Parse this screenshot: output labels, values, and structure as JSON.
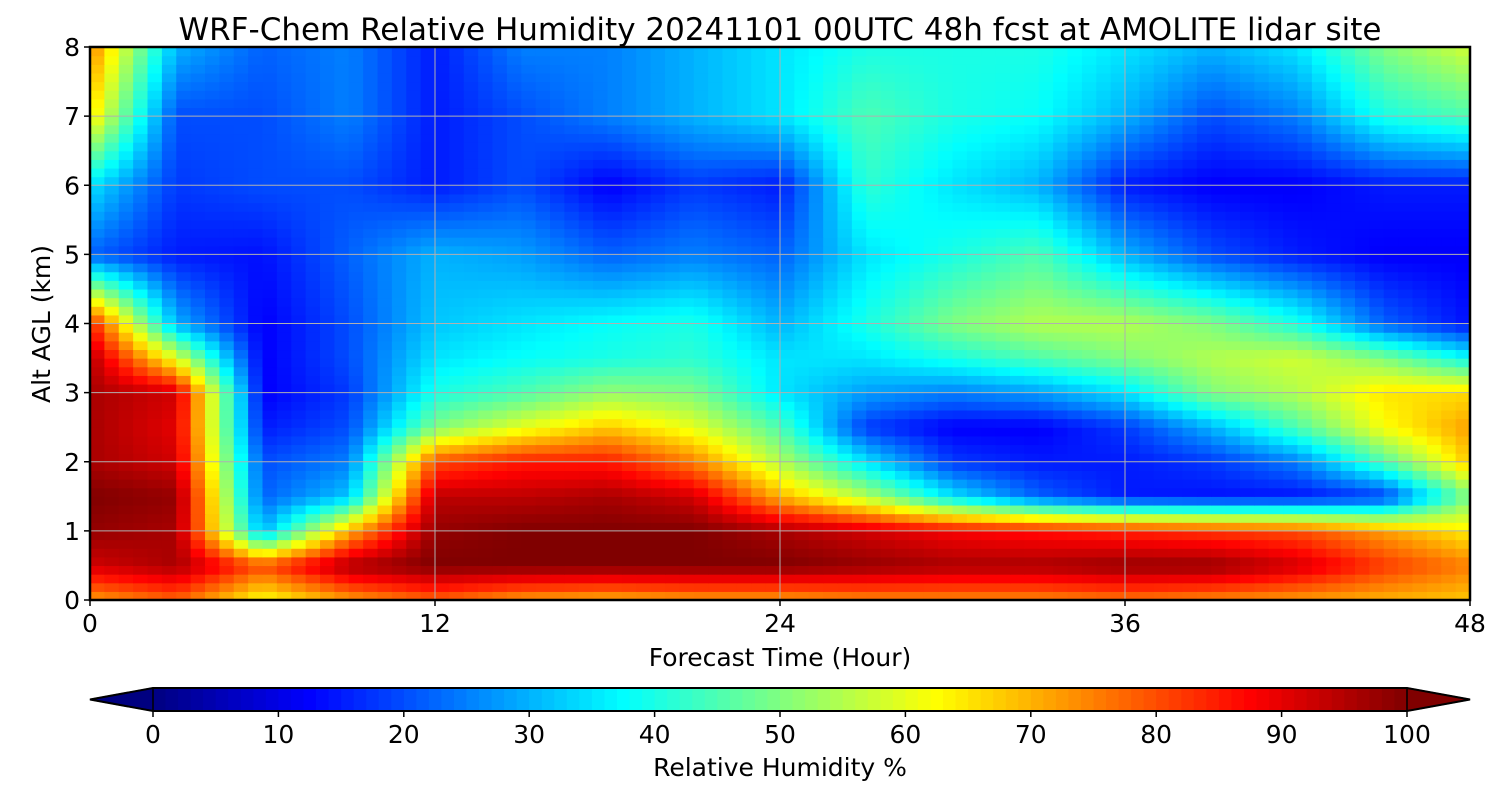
{
  "chart_data": {
    "type": "heatmap",
    "title": "WRF-Chem Relative Humidity 20241101 00UTC 48h fcst at AMOLITE lidar site",
    "xlabel": "Forecast Time (Hour)",
    "ylabel": "Alt AGL (km)",
    "xlim": [
      0,
      48
    ],
    "ylim": [
      0,
      8
    ],
    "x_ticks": [
      0,
      12,
      24,
      36,
      48
    ],
    "y_ticks": [
      0,
      1,
      2,
      3,
      4,
      5,
      6,
      7,
      8
    ],
    "grid": true,
    "colormap": "jet",
    "colorbar": {
      "label": "Relative Humidity %",
      "orientation": "horizontal",
      "range": [
        0,
        100
      ],
      "ticks": [
        0,
        10,
        20,
        30,
        40,
        50,
        60,
        70,
        80,
        90,
        100
      ],
      "extend": "both"
    },
    "x": [
      0,
      3,
      6,
      9,
      12,
      15,
      18,
      21,
      24,
      27,
      30,
      33,
      36,
      39,
      42,
      45,
      48
    ],
    "y": [
      0,
      0.5,
      1,
      1.5,
      2,
      2.5,
      3,
      3.5,
      4,
      5,
      6,
      7,
      8
    ],
    "z": [
      [
        72,
        78,
        62,
        72,
        78,
        72,
        70,
        72,
        72,
        74,
        74,
        74,
        76,
        74,
        72,
        70,
        68
      ],
      [
        92,
        96,
        80,
        96,
        100,
        100,
        100,
        100,
        100,
        98,
        96,
        96,
        98,
        98,
        92,
        82,
        75
      ],
      [
        98,
        96,
        30,
        70,
        98,
        100,
        100,
        100,
        96,
        92,
        88,
        86,
        84,
        82,
        80,
        72,
        64
      ],
      [
        100,
        98,
        22,
        32,
        94,
        94,
        96,
        92,
        70,
        55,
        35,
        22,
        15,
        14,
        14,
        18,
        50
      ],
      [
        96,
        92,
        20,
        25,
        80,
        85,
        85,
        75,
        55,
        35,
        18,
        15,
        15,
        18,
        25,
        45,
        68
      ],
      [
        96,
        90,
        15,
        20,
        50,
        60,
        68,
        60,
        45,
        18,
        12,
        12,
        18,
        30,
        45,
        62,
        72
      ],
      [
        96,
        92,
        12,
        18,
        40,
        45,
        52,
        50,
        35,
        28,
        25,
        28,
        35,
        50,
        55,
        65,
        66
      ],
      [
        95,
        60,
        12,
        20,
        35,
        38,
        40,
        42,
        35,
        35,
        40,
        45,
        50,
        55,
        58,
        50,
        38
      ],
      [
        85,
        30,
        12,
        20,
        32,
        35,
        38,
        40,
        30,
        40,
        50,
        55,
        55,
        50,
        40,
        22,
        14
      ],
      [
        22,
        15,
        14,
        22,
        30,
        28,
        22,
        25,
        22,
        35,
        40,
        45,
        30,
        20,
        15,
        12,
        12
      ],
      [
        35,
        18,
        20,
        20,
        15,
        20,
        12,
        18,
        15,
        42,
        35,
        30,
        15,
        12,
        12,
        15,
        15
      ],
      [
        65,
        20,
        20,
        25,
        15,
        20,
        25,
        30,
        35,
        45,
        40,
        38,
        30,
        20,
        25,
        40,
        45
      ],
      [
        75,
        30,
        22,
        25,
        15,
        25,
        25,
        30,
        35,
        40,
        40,
        40,
        35,
        30,
        35,
        50,
        58
      ]
    ]
  }
}
